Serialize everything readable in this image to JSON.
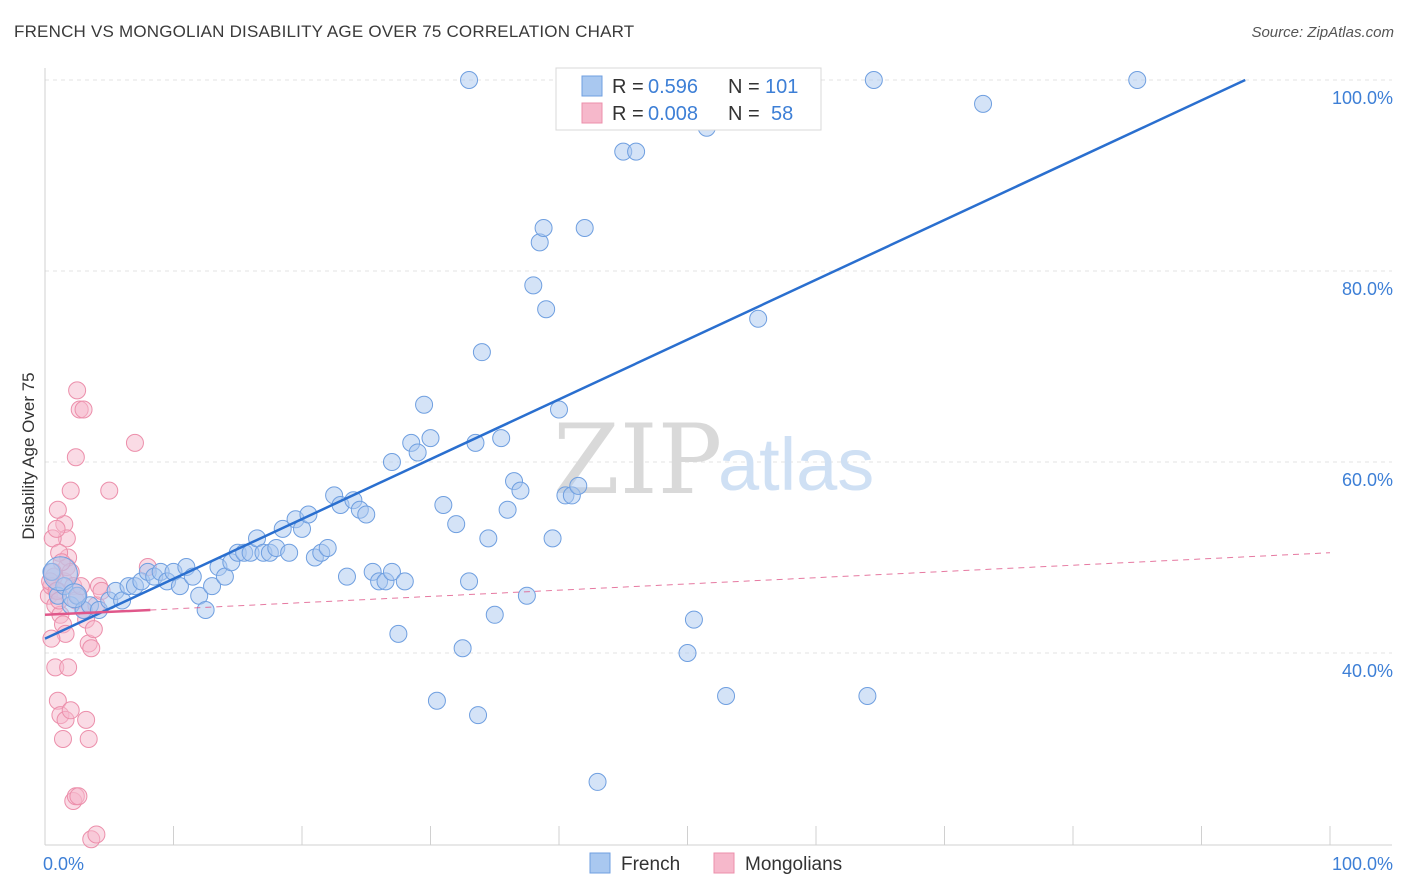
{
  "header": {
    "title": "FRENCH VS MONGOLIAN DISABILITY AGE OVER 75 CORRELATION CHART",
    "source": "Source: ZipAtlas.com"
  },
  "watermark": {
    "zip": "ZIP",
    "atlas": "atlas"
  },
  "colors": {
    "french": "#a9c8f0",
    "french_stroke": "#6f9fe0",
    "french_line": "#2a6fcf",
    "mongolians": "#f6b8cb",
    "mongolians_stroke": "#ec8fab",
    "mongolians_line": "#e0578a",
    "tick": "#3d7fd6"
  },
  "chart_data": {
    "type": "scatter",
    "title": "FRENCH VS MONGOLIAN DISABILITY AGE OVER 75 CORRELATION CHART",
    "xlabel": "",
    "ylabel": "Disability Age Over 75",
    "xlim": [
      0,
      100
    ],
    "ylim": [
      21,
      101
    ],
    "x_tick_labels": [
      "0.0%",
      "100.0%"
    ],
    "y_ticks": [
      {
        "value": 100,
        "label": "100.0%"
      },
      {
        "value": 80,
        "label": "80.0%"
      },
      {
        "value": 60,
        "label": "60.0%"
      },
      {
        "value": 40,
        "label": "40.0%"
      }
    ],
    "grid": true,
    "legend_placement": "top-center",
    "stats": [
      {
        "series": "French",
        "r_label": "R =",
        "r": "0.596",
        "n_label": "N =",
        "n": "101"
      },
      {
        "series": "Mongolians",
        "r_label": "R =",
        "r": "0.008",
        "n_label": "N =",
        "n": "58"
      }
    ],
    "series": [
      {
        "name": "French",
        "trend": {
          "x": [
            0,
            93.4
          ],
          "y": [
            41.5,
            100
          ]
        },
        "points": [
          [
            0.5,
            48.5
          ],
          [
            1,
            46
          ],
          [
            1.5,
            47
          ],
          [
            2,
            45
          ],
          [
            2.5,
            46
          ],
          [
            3,
            44.5
          ],
          [
            3.5,
            45
          ],
          [
            4.2,
            44.5
          ],
          [
            5,
            45.5
          ],
          [
            5.5,
            46.5
          ],
          [
            6,
            45.5
          ],
          [
            6.5,
            47
          ],
          [
            7,
            47
          ],
          [
            7.5,
            47.5
          ],
          [
            8,
            48.5
          ],
          [
            8.5,
            48
          ],
          [
            9,
            48.5
          ],
          [
            9.5,
            47.5
          ],
          [
            10,
            48.5
          ],
          [
            10.5,
            47
          ],
          [
            11,
            49
          ],
          [
            11.5,
            48
          ],
          [
            12,
            46
          ],
          [
            12.5,
            44.5
          ],
          [
            13,
            47
          ],
          [
            13.5,
            49
          ],
          [
            14,
            48
          ],
          [
            14.5,
            49.5
          ],
          [
            15,
            50.5
          ],
          [
            15.5,
            50.5
          ],
          [
            16,
            50.5
          ],
          [
            16.5,
            52
          ],
          [
            17,
            50.5
          ],
          [
            17.5,
            50.5
          ],
          [
            18,
            51
          ],
          [
            18.5,
            53
          ],
          [
            19,
            50.5
          ],
          [
            19.5,
            54
          ],
          [
            20,
            53
          ],
          [
            20.5,
            54.5
          ],
          [
            21,
            50
          ],
          [
            21.5,
            50.5
          ],
          [
            22,
            51
          ],
          [
            22.5,
            56.5
          ],
          [
            23,
            55.5
          ],
          [
            23.5,
            48
          ],
          [
            24,
            56
          ],
          [
            24.5,
            55
          ],
          [
            25,
            54.5
          ],
          [
            25.5,
            48.5
          ],
          [
            26,
            47.5
          ],
          [
            26.5,
            47.5
          ],
          [
            27,
            48.5
          ],
          [
            27.5,
            42
          ],
          [
            28,
            47.5
          ],
          [
            28.5,
            62
          ],
          [
            29,
            61
          ],
          [
            29.5,
            66
          ],
          [
            30,
            62.5
          ],
          [
            30.5,
            35
          ],
          [
            31,
            55.5
          ],
          [
            32,
            53.5
          ],
          [
            32.5,
            40.5
          ],
          [
            33,
            47.5
          ],
          [
            33.5,
            62
          ],
          [
            33.7,
            33.5
          ],
          [
            34,
            71.5
          ],
          [
            34.5,
            52
          ],
          [
            35,
            44
          ],
          [
            35.5,
            62.5
          ],
          [
            36,
            55
          ],
          [
            36.5,
            58
          ],
          [
            37,
            57
          ],
          [
            37.5,
            46
          ],
          [
            38,
            78.5
          ],
          [
            38.5,
            83
          ],
          [
            38.8,
            84.5
          ],
          [
            39,
            76
          ],
          [
            39.5,
            52
          ],
          [
            40,
            65.5
          ],
          [
            40.5,
            56.5
          ],
          [
            41,
            56.5
          ],
          [
            41.5,
            57.5
          ],
          [
            42,
            84.5
          ],
          [
            43,
            26.5
          ],
          [
            44,
            100
          ],
          [
            45,
            92.5
          ],
          [
            46,
            92.5
          ],
          [
            47,
            100
          ],
          [
            50,
            40
          ],
          [
            50.5,
            43.5
          ],
          [
            51.5,
            95
          ],
          [
            53,
            35.5
          ],
          [
            55,
            100
          ],
          [
            55.5,
            75
          ],
          [
            64,
            35.5
          ],
          [
            64.5,
            100
          ],
          [
            73,
            97.5
          ],
          [
            85,
            100
          ],
          [
            33,
            100
          ],
          [
            27,
            60
          ]
        ]
      },
      {
        "name": "Mongolians",
        "trend": {
          "x": [
            0,
            8.2
          ],
          "y": [
            44,
            44.5
          ]
        },
        "trend_dashed": {
          "x": [
            8.2,
            100
          ],
          "y": [
            44.5,
            50.5
          ]
        },
        "points": [
          [
            0.3,
            46
          ],
          [
            0.5,
            47
          ],
          [
            0.7,
            48
          ],
          [
            0.8,
            45
          ],
          [
            1,
            46.5
          ],
          [
            1.2,
            44
          ],
          [
            1.4,
            43
          ],
          [
            1.5,
            47.5
          ],
          [
            1.6,
            42
          ],
          [
            1.7,
            49
          ],
          [
            1.8,
            50
          ],
          [
            2,
            48.5
          ],
          [
            2.2,
            47
          ],
          [
            2.4,
            45.5
          ],
          [
            2.6,
            46
          ],
          [
            2.8,
            47
          ],
          [
            3,
            44.5
          ],
          [
            3.2,
            43.5
          ],
          [
            3.4,
            41
          ],
          [
            3.6,
            40.5
          ],
          [
            3.8,
            42.5
          ],
          [
            4,
            45
          ],
          [
            4.2,
            47
          ],
          [
            4.4,
            46.5
          ],
          [
            0.5,
            41.5
          ],
          [
            0.8,
            38.5
          ],
          [
            1,
            35
          ],
          [
            1.2,
            33.5
          ],
          [
            1.4,
            31
          ],
          [
            1.6,
            33
          ],
          [
            1.8,
            38.5
          ],
          [
            2,
            34
          ],
          [
            2.2,
            24.5
          ],
          [
            2.4,
            25
          ],
          [
            2.6,
            25
          ],
          [
            1.5,
            53.5
          ],
          [
            1.7,
            52
          ],
          [
            2,
            57
          ],
          [
            2.4,
            60.5
          ],
          [
            2.5,
            67.5
          ],
          [
            2.7,
            65.5
          ],
          [
            3,
            65.5
          ],
          [
            3.2,
            33
          ],
          [
            3.4,
            31
          ],
          [
            3.6,
            20.5
          ],
          [
            4,
            21
          ],
          [
            5,
            57
          ],
          [
            7,
            62
          ],
          [
            8,
            49
          ],
          [
            1,
            55
          ],
          [
            0.6,
            52
          ],
          [
            0.9,
            53
          ],
          [
            1.1,
            50.5
          ],
          [
            1.3,
            49.5
          ],
          [
            0.4,
            47.5
          ],
          [
            0.6,
            48.5
          ],
          [
            0.9,
            46.5
          ],
          [
            1.1,
            45.5
          ]
        ]
      }
    ]
  },
  "legend": {
    "french_label": "French",
    "mongolians_label": "Mongolians"
  }
}
